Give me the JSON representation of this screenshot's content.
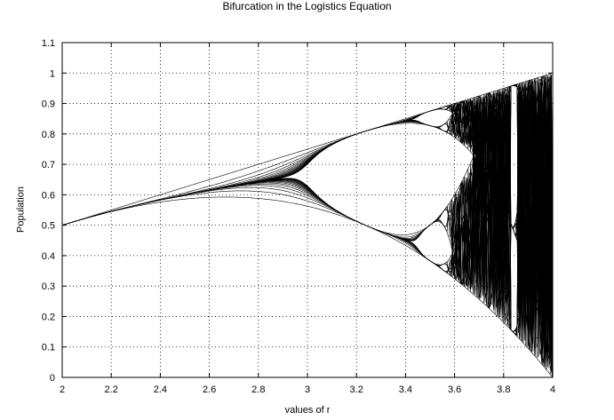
{
  "chart_data": {
    "type": "scatter",
    "title": "Bifurcation in the Logistics Equation",
    "xlabel": "values of r",
    "ylabel": "Population",
    "xlim": [
      2,
      4
    ],
    "ylim": [
      0,
      1.1
    ],
    "xticks": [
      "2",
      "2.2",
      "2.4",
      "2.6",
      "2.8",
      "3",
      "3.2",
      "3.4",
      "3.6",
      "3.8",
      "4"
    ],
    "yticks": [
      "0",
      "0.1",
      "0.2",
      "0.3",
      "0.4",
      "0.5",
      "0.6",
      "0.7",
      "0.8",
      "0.9",
      "1",
      "1.1"
    ],
    "grid": true,
    "grid_style": "dotted",
    "series": [
      {
        "color": "#000000",
        "r_range": [
          2,
          4
        ],
        "r_step": 0.005,
        "x0": 0.5,
        "iterations": 36,
        "plotted_from_iteration": 0,
        "points": [
          {
            "x": 2.0,
            "y": 0.5
          },
          {
            "x": 2.4,
            "y": 0.583
          },
          {
            "x": 2.8,
            "y": 0.643
          },
          {
            "x": 3.0,
            "y": 0.667
          },
          {
            "x": 3.2,
            "y": 0.799
          },
          {
            "x": 3.2,
            "y": 0.513
          },
          {
            "x": 3.4,
            "y": 0.842
          },
          {
            "x": 3.4,
            "y": 0.452
          },
          {
            "x": 3.5,
            "y": 0.875
          },
          {
            "x": 3.5,
            "y": 0.383
          },
          {
            "x": 3.83,
            "y": 0.957
          },
          {
            "x": 3.83,
            "y": 0.504
          },
          {
            "x": 3.83,
            "y": 0.156
          },
          {
            "x": 4.0,
            "y": 1.0
          },
          {
            "x": 4.0,
            "y": 0.0
          }
        ]
      }
    ]
  }
}
